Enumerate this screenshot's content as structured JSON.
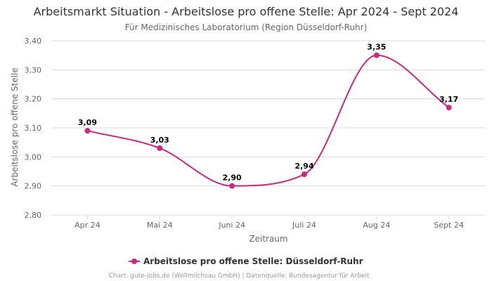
{
  "colors": {
    "series": "#c8287f",
    "grid": "#d9d9d9",
    "text": "#333333",
    "muted": "#666666"
  },
  "chart_data": {
    "type": "line",
    "title": "Arbeitsmarkt Situation - Arbeitslose pro offene Stelle: Apr 2024 - Sept 2024",
    "subtitle": "Für Medizinisches Laboratorium (Region Düsseldorf-Ruhr)",
    "xlabel": "Zeitraum",
    "ylabel": "Arbeitslose pro offene Stelle",
    "categories": [
      "Apr 24",
      "Mai 24",
      "Juni 24",
      "Juli 24",
      "Aug 24",
      "Sept 24"
    ],
    "ylim": [
      2.8,
      3.4
    ],
    "yticks": [
      "2,80",
      "2,90",
      "3,00",
      "3,10",
      "3,20",
      "3,30",
      "3,40"
    ],
    "grid": true,
    "legend_position": "bottom-center",
    "series": [
      {
        "name": "Arbeitslose pro offene Stelle: Düsseldorf-Ruhr",
        "values": [
          3.09,
          3.03,
          2.9,
          2.94,
          3.35,
          3.17
        ],
        "labels": [
          "3,09",
          "3,03",
          "2,90",
          "2,94",
          "3,35",
          "3,17"
        ]
      }
    ],
    "credits": "Chart: gute-jobs.de (Wollmilchsau GmbH) | Datenquelle: Bundesagentur für Arbeit"
  }
}
